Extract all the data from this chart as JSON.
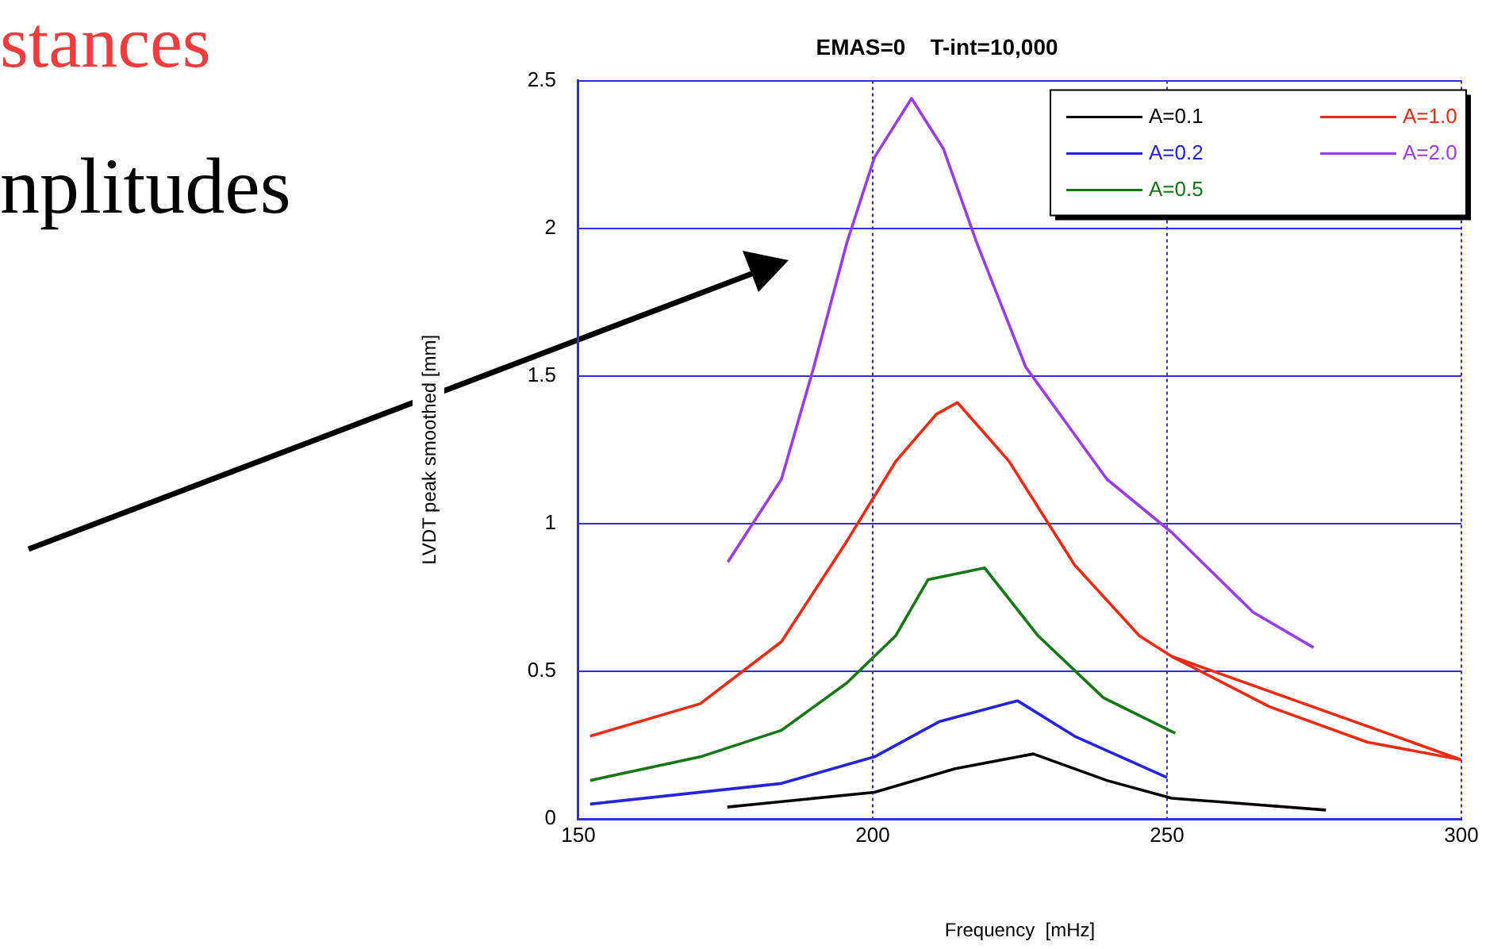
{
  "chart_data": {
    "type": "line",
    "title": "EMAS=0    T-int=10,000",
    "xlabel": "Frequency  [mHz]",
    "ylabel": "LVDT peak smoothed [mm]",
    "annotations": [
      "stances",
      "nplitudes"
    ],
    "xlim": [
      150,
      300
    ],
    "xticks": [
      150,
      200,
      250,
      300
    ],
    "ylim": [
      0,
      2.5
    ],
    "yticks": [
      0,
      0.5,
      1,
      1.5,
      2,
      2.5
    ],
    "grid": true,
    "legend": "top right",
    "marker": "none",
    "line_style": "solid",
    "series": [
      {
        "name": "A=0.1",
        "color": "#000000",
        "x": [
          175.3,
          200.3,
          214,
          227.3,
          239.8,
          250.8,
          277
        ],
        "values": [
          0.04,
          0.09,
          0.17,
          0.22,
          0.13,
          0.07,
          0.03
        ]
      },
      {
        "name": "A=0.2",
        "color": "#2424e0",
        "x": [
          152,
          184.5,
          200.3,
          211.4,
          224.6,
          234.3,
          250
        ],
        "values": [
          0.05,
          0.12,
          0.21,
          0.33,
          0.4,
          0.28,
          0.14
        ]
      },
      {
        "name": "A=0.5",
        "color": "#147814",
        "x": [
          152,
          170.7,
          184.5,
          195.6,
          203.9,
          209.4,
          219,
          228.1,
          239.2,
          251.4
        ],
        "values": [
          0.13,
          0.21,
          0.3,
          0.46,
          0.62,
          0.81,
          0.85,
          0.62,
          0.41,
          0.29
        ]
      },
      {
        "name": "A=1.0",
        "color": "#ee2a10",
        "x": [
          152,
          170.7,
          184.5,
          195.6,
          203.9,
          210.8,
          214.4,
          223.2,
          234.3,
          245.3,
          250.8,
          267.4,
          284,
          300
        ],
        "values": [
          0.28,
          0.39,
          0.6,
          0.94,
          1.21,
          1.37,
          1.41,
          1.21,
          0.86,
          0.62,
          0.55,
          0.38,
          0.26,
          0.2
        ]
      },
      {
        "color": "#ee2a10",
        "x": [
          250.8,
          300
        ],
        "values": [
          0.55,
          0.2
        ]
      },
      {
        "name": "A=2.0",
        "color": "#9a3ce8",
        "x": [
          175.4,
          184.5,
          190,
          195.6,
          200.3,
          206.6,
          212,
          217.7,
          226,
          239.8,
          250.8,
          264.6,
          274.9
        ],
        "values": [
          0.87,
          1.15,
          1.53,
          1.95,
          2.24,
          2.44,
          2.27,
          1.95,
          1.53,
          1.15,
          0.97,
          0.7,
          0.58
        ]
      }
    ]
  }
}
